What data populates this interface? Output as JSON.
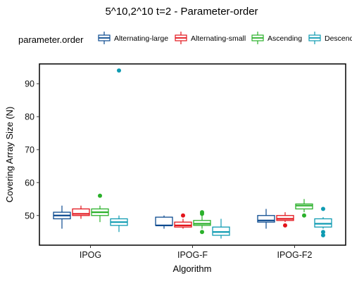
{
  "chart_data": {
    "type": "boxplot",
    "title": "5^10,2^10 t=2 - Parameter-order",
    "xlabel": "Algorithm",
    "ylabel": "Covering Array Size (N)",
    "ylim": [
      41,
      96
    ],
    "yticks": [
      50,
      60,
      70,
      80,
      90
    ],
    "categories": [
      "IPOG",
      "IPOG-F",
      "IPOG-F2"
    ],
    "legend": {
      "title": "parameter.order",
      "position": "top"
    },
    "series": [
      {
        "name": "Alternating-large",
        "color": "#0b4a8f",
        "boxes": [
          {
            "whisker_low": 46,
            "q1": 49,
            "median": 50,
            "q3": 51,
            "whisker_high": 53,
            "outliers": []
          },
          {
            "whisker_low": 46,
            "q1": 47,
            "median": 47,
            "q3": 49.5,
            "whisker_high": 50,
            "outliers": []
          },
          {
            "whisker_low": 46,
            "q1": 48,
            "median": 48.5,
            "q3": 50,
            "whisker_high": 52,
            "outliers": []
          }
        ]
      },
      {
        "name": "Alternating-small",
        "color": "#e3141b",
        "boxes": [
          {
            "whisker_low": 49,
            "q1": 50,
            "median": 50.5,
            "q3": 52,
            "whisker_high": 53,
            "outliers": []
          },
          {
            "whisker_low": 46,
            "q1": 46.5,
            "median": 47,
            "q3": 48,
            "whisker_high": 49,
            "outliers": [
              50
            ]
          },
          {
            "whisker_low": 48,
            "q1": 48.5,
            "median": 49,
            "q3": 50,
            "whisker_high": 51,
            "outliers": [
              47
            ]
          }
        ]
      },
      {
        "name": "Ascending",
        "color": "#2ab02a",
        "boxes": [
          {
            "whisker_low": 48,
            "q1": 50,
            "median": 51,
            "q3": 52,
            "whisker_high": 53,
            "outliers": [
              56
            ]
          },
          {
            "whisker_low": 46,
            "q1": 47,
            "median": 47.5,
            "q3": 48.5,
            "whisker_high": 50,
            "outliers": [
              45,
              50.5,
              51
            ]
          },
          {
            "whisker_low": 51,
            "q1": 52,
            "median": 53,
            "q3": 53.5,
            "whisker_high": 55,
            "outliers": [
              50
            ]
          }
        ]
      },
      {
        "name": "Descending",
        "color": "#0f9bb2",
        "boxes": [
          {
            "whisker_low": 45,
            "q1": 47,
            "median": 48,
            "q3": 49,
            "whisker_high": 50,
            "outliers": [
              94
            ]
          },
          {
            "whisker_low": 43,
            "q1": 44,
            "median": 45,
            "q3": 46.5,
            "whisker_high": 49,
            "outliers": []
          },
          {
            "whisker_low": 46,
            "q1": 46.5,
            "median": 47.5,
            "q3": 49,
            "whisker_high": 49.5,
            "outliers": [
              52,
              45,
              44
            ]
          }
        ]
      }
    ]
  }
}
